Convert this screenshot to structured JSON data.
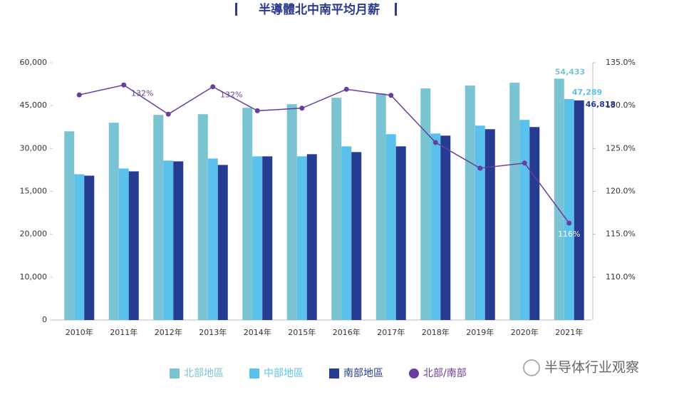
{
  "chart_data": {
    "type": "bar",
    "title": "半導體北中南平均月薪",
    "categories": [
      "2010年",
      "2011年",
      "2012年",
      "2013年",
      "2014年",
      "2015年",
      "2016年",
      "2017年",
      "2018年",
      "2019年",
      "2020年",
      "2021年"
    ],
    "series": [
      {
        "name": "北部地區",
        "color": "#79c3d3",
        "values": [
          36000,
          39000,
          41750,
          42000,
          44250,
          45500,
          47750,
          49250,
          51000,
          52000,
          53000,
          54433
        ],
        "value_labels": [
          null,
          null,
          null,
          null,
          null,
          null,
          null,
          null,
          null,
          null,
          null,
          "54,433"
        ]
      },
      {
        "name": "中部地區",
        "color": "#5ac0ec",
        "values": [
          21000,
          23000,
          25750,
          26500,
          27250,
          27250,
          30750,
          35000,
          35250,
          38000,
          40000,
          47289
        ],
        "value_labels": [
          null,
          null,
          null,
          null,
          null,
          null,
          null,
          null,
          null,
          null,
          null,
          "47,289"
        ]
      },
      {
        "name": "南部地區",
        "color": "#263b92",
        "values": [
          20500,
          22000,
          25500,
          24250,
          27250,
          28000,
          28750,
          30750,
          34500,
          36750,
          37500,
          46818
        ],
        "value_labels": [
          null,
          null,
          null,
          null,
          null,
          null,
          null,
          null,
          null,
          null,
          null,
          "46,818"
        ]
      },
      {
        "name": "北部/南部",
        "type": "line",
        "axis": "y2",
        "color": "#6b3d9a",
        "values": [
          131.25,
          132.4,
          129,
          132.2,
          129.4,
          129.7,
          131.9,
          131.2,
          125.7,
          122.7,
          123.3,
          116.3
        ],
        "value_labels": [
          null,
          "132%",
          null,
          "132%",
          null,
          null,
          null,
          null,
          null,
          null,
          null,
          "116%"
        ]
      }
    ],
    "ylim": [
      0,
      60000
    ],
    "yticks": [
      0,
      {
        "value": 10000,
        "label": "10,000"
      },
      {
        "value": 20000,
        "label": "20,000"
      },
      {
        "value": 15000,
        "label": "15,000"
      },
      {
        "value": 30000,
        "label": "30,000"
      },
      {
        "value": 45000,
        "label": "45,000"
      },
      {
        "value": 60000,
        "label": "60,000"
      }
    ],
    "y2lim": [
      105,
      135
    ],
    "y2ticks": [
      {
        "value": 110,
        "label": "110.0%"
      },
      {
        "value": 115,
        "label": "115.0%"
      },
      {
        "value": 120,
        "label": "120.0%"
      },
      {
        "value": 125,
        "label": "125.0%"
      },
      {
        "value": 130,
        "label": "130.0%"
      },
      {
        "value": 135,
        "label": "135.0%"
      }
    ],
    "legend": "bottom"
  },
  "watermark": "半导体行业观察"
}
